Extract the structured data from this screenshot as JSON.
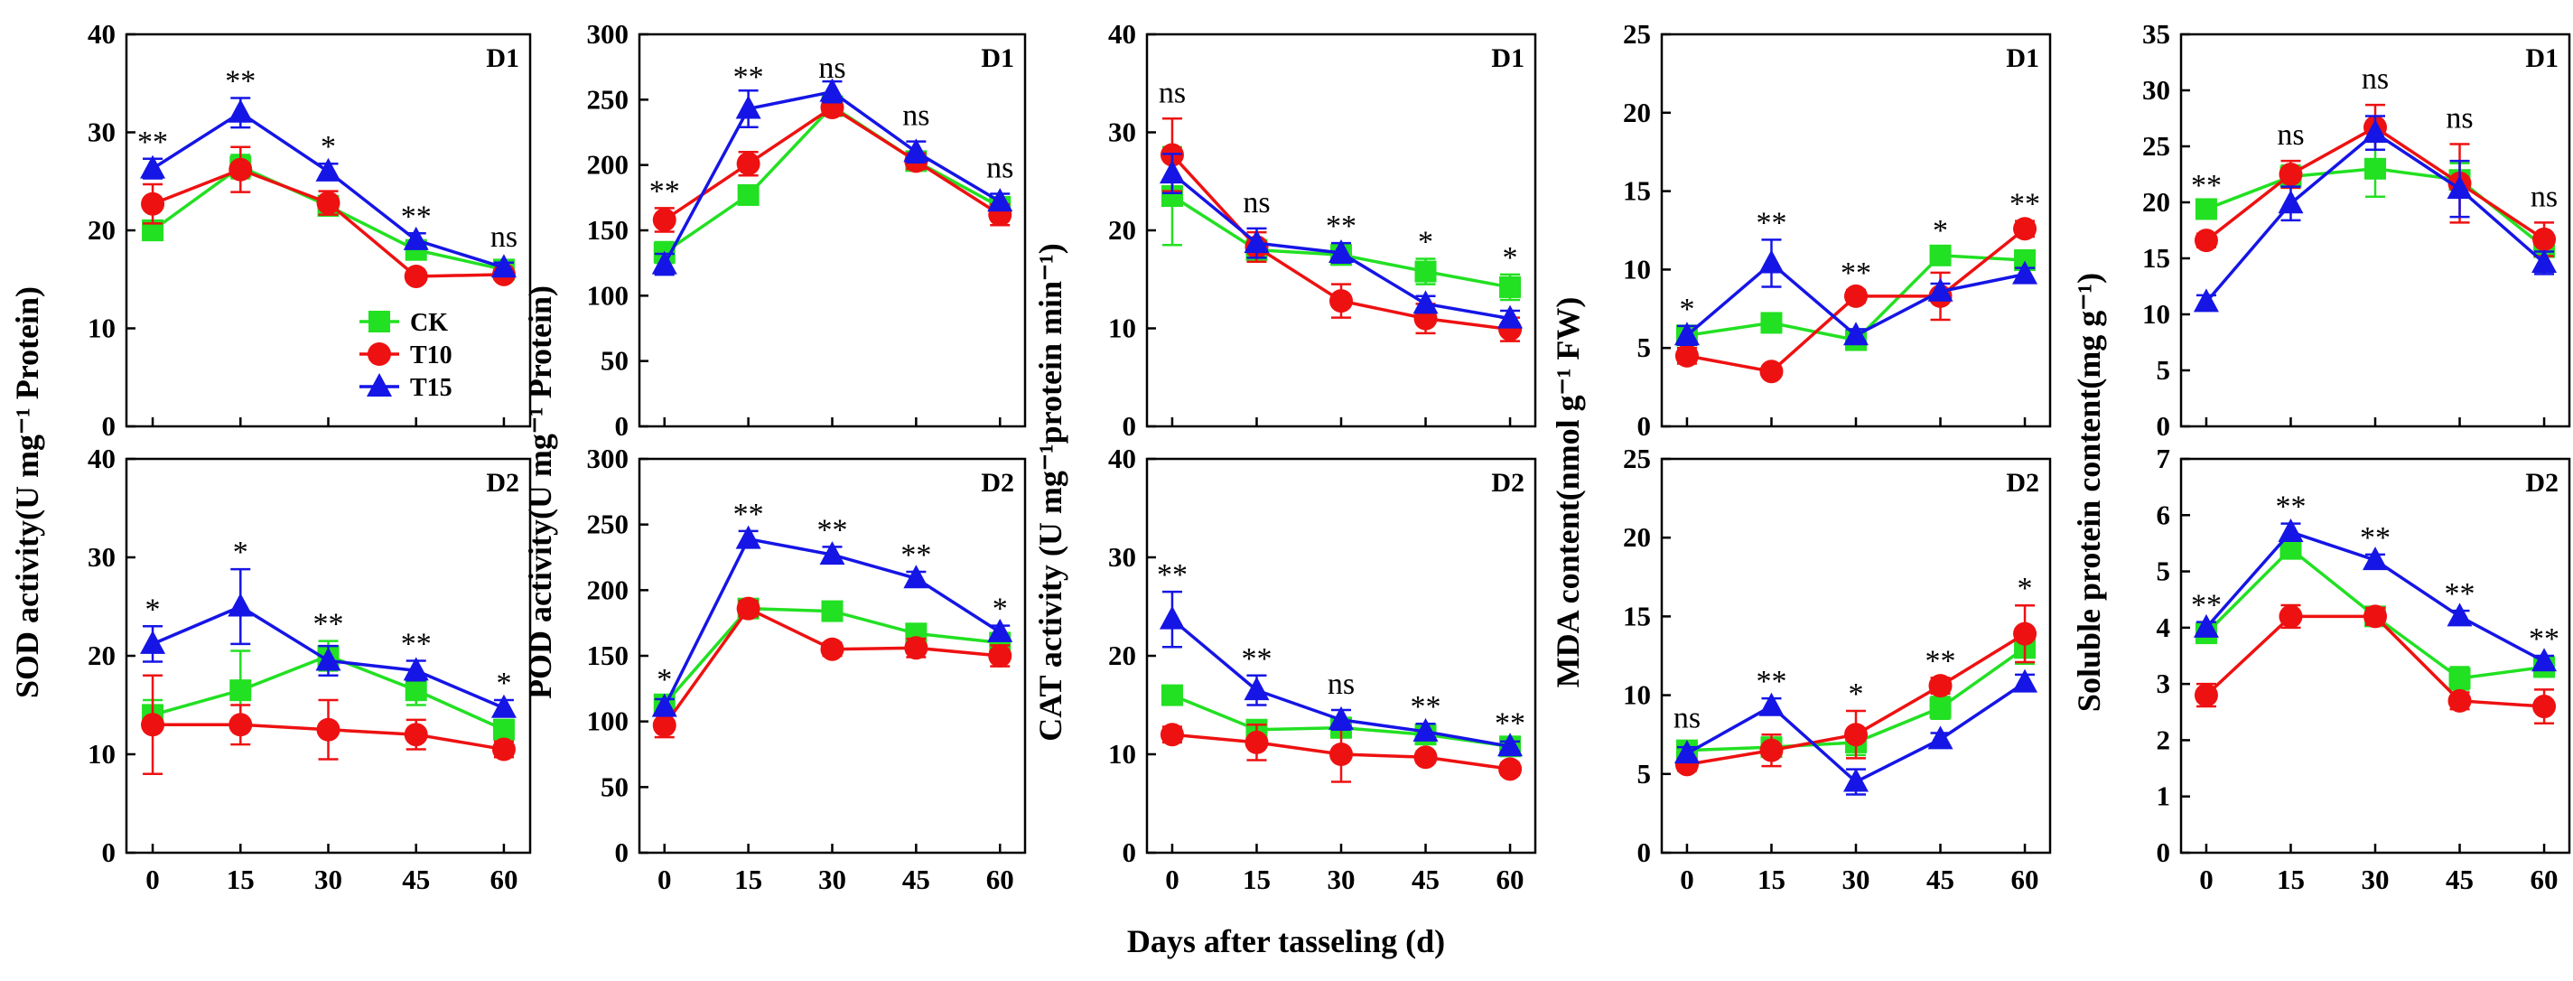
{
  "figure": {
    "xlabel": "Days after tasseling (d)",
    "legend": [
      "CK",
      "T10",
      "T15"
    ],
    "colors": {
      "CK": "#22e022",
      "T10": "#ee1111",
      "T15": "#1515e6"
    }
  },
  "chart_data": [
    {
      "type": "line",
      "id": "sod-d1",
      "panel_label": "D1",
      "ylabel": "SOD activity(U mg⁻¹ Protein)",
      "categories": [
        "0",
        "15",
        "30",
        "45",
        "60"
      ],
      "ylim": [
        0,
        40
      ],
      "yticks": [
        0,
        10,
        20,
        30,
        40
      ],
      "series": [
        {
          "name": "CK",
          "values": [
            20.0,
            26.5,
            22.5,
            18.0,
            16.0
          ],
          "errors": [
            1.0,
            1.2,
            1.0,
            0.8,
            0.6
          ]
        },
        {
          "name": "T10",
          "values": [
            22.7,
            26.2,
            22.8,
            15.3,
            15.5
          ],
          "errors": [
            2.0,
            2.3,
            1.2,
            0.5,
            0.5
          ]
        },
        {
          "name": "T15",
          "values": [
            26.3,
            32.0,
            26.0,
            19.0,
            16.2
          ],
          "errors": [
            1.0,
            1.5,
            0.8,
            0.7,
            0.5
          ]
        }
      ],
      "significance": [
        "**",
        "**",
        "*",
        "**",
        "ns"
      ],
      "legend_position": "bottom-right"
    },
    {
      "type": "line",
      "id": "sod-d2",
      "panel_label": "D2",
      "ylabel": "",
      "categories": [
        "0",
        "15",
        "30",
        "45",
        "60"
      ],
      "ylim": [
        0,
        40
      ],
      "yticks": [
        0,
        10,
        20,
        30,
        40
      ],
      "series": [
        {
          "name": "CK",
          "values": [
            14.0,
            16.5,
            20.0,
            16.5,
            12.5
          ],
          "errors": [
            1.5,
            4.0,
            1.5,
            1.5,
            1.0
          ]
        },
        {
          "name": "T10",
          "values": [
            13.0,
            13.0,
            12.5,
            12.0,
            10.5
          ],
          "errors": [
            5.0,
            2.0,
            3.0,
            1.5,
            0.8
          ]
        },
        {
          "name": "T15",
          "values": [
            21.2,
            25.0,
            19.5,
            18.5,
            14.7
          ],
          "errors": [
            1.8,
            3.8,
            1.5,
            1.0,
            0.8
          ]
        }
      ],
      "significance": [
        "*",
        "*",
        "**",
        "**",
        "*"
      ]
    },
    {
      "type": "line",
      "id": "pod-d1",
      "panel_label": "D1",
      "ylabel": "POD activity(U mg⁻¹ Protein)",
      "categories": [
        "0",
        "15",
        "30",
        "45",
        "60"
      ],
      "ylim": [
        0,
        300
      ],
      "yticks": [
        0,
        50,
        100,
        150,
        200,
        250,
        300
      ],
      "series": [
        {
          "name": "CK",
          "values": [
            133,
            177,
            245,
            203,
            168
          ],
          "errors": [
            8,
            6,
            6,
            6,
            6
          ]
        },
        {
          "name": "T10",
          "values": [
            158,
            201,
            244,
            203,
            162
          ],
          "errors": [
            9,
            9,
            6,
            6,
            8
          ]
        },
        {
          "name": "T15",
          "values": [
            124,
            243,
            256,
            210,
            172
          ],
          "errors": [
            8,
            14,
            8,
            8,
            6
          ]
        }
      ],
      "significance": [
        "**",
        "**",
        "ns",
        "ns",
        "ns"
      ]
    },
    {
      "type": "line",
      "id": "pod-d2",
      "panel_label": "D2",
      "ylabel": "",
      "categories": [
        "0",
        "15",
        "30",
        "45",
        "60"
      ],
      "ylim": [
        0,
        300
      ],
      "yticks": [
        0,
        50,
        100,
        150,
        200,
        250,
        300
      ],
      "series": [
        {
          "name": "CK",
          "values": [
            113,
            186,
            184,
            167,
            160
          ],
          "errors": [
            6,
            6,
            6,
            6,
            6
          ]
        },
        {
          "name": "T10",
          "values": [
            97,
            186,
            155,
            156,
            150
          ],
          "errors": [
            9,
            6,
            5,
            7,
            8
          ]
        },
        {
          "name": "T15",
          "values": [
            111,
            239,
            227,
            209,
            168
          ],
          "errors": [
            6,
            6,
            6,
            5,
            5
          ]
        }
      ],
      "significance": [
        "*",
        "**",
        "**",
        "**",
        "*"
      ]
    },
    {
      "type": "line",
      "id": "cat-d1",
      "panel_label": "D1",
      "ylabel": "CAT activity (U mg⁻¹protein min⁻¹)",
      "categories": [
        "0",
        "15",
        "30",
        "45",
        "60"
      ],
      "ylim": [
        0,
        40
      ],
      "yticks": [
        0,
        10,
        20,
        30,
        40
      ],
      "series": [
        {
          "name": "CK",
          "values": [
            23.5,
            18.0,
            17.5,
            15.8,
            14.2
          ],
          "errors": [
            5.0,
            1.0,
            1.0,
            1.3,
            1.3
          ]
        },
        {
          "name": "T10",
          "values": [
            27.7,
            18.3,
            12.8,
            11.0,
            9.9
          ],
          "errors": [
            3.7,
            1.5,
            1.7,
            1.5,
            1.2
          ]
        },
        {
          "name": "T15",
          "values": [
            25.8,
            18.7,
            17.7,
            12.5,
            11.0
          ],
          "errors": [
            2.0,
            1.5,
            1.0,
            0.8,
            0.8
          ]
        }
      ],
      "significance": [
        "ns",
        "ns",
        "**",
        "*",
        "*"
      ]
    },
    {
      "type": "line",
      "id": "cat-d2",
      "panel_label": "D2",
      "ylabel": "",
      "categories": [
        "0",
        "15",
        "30",
        "45",
        "60"
      ],
      "ylim": [
        0,
        40
      ],
      "yticks": [
        0,
        10,
        20,
        30,
        40
      ],
      "series": [
        {
          "name": "CK",
          "values": [
            16.0,
            12.5,
            12.7,
            12.0,
            10.8
          ],
          "errors": [
            0.8,
            0.8,
            1.0,
            0.8,
            0.6
          ]
        },
        {
          "name": "T10",
          "values": [
            12.0,
            11.2,
            10.0,
            9.7,
            8.5
          ],
          "errors": [
            0.8,
            1.8,
            2.8,
            0.6,
            0.6
          ]
        },
        {
          "name": "T15",
          "values": [
            23.7,
            16.5,
            13.5,
            12.3,
            10.8
          ],
          "errors": [
            2.8,
            1.5,
            1.0,
            0.8,
            0.5
          ]
        }
      ],
      "significance": [
        "**",
        "**",
        "ns",
        "**",
        "**"
      ]
    },
    {
      "type": "line",
      "id": "mda-d1",
      "panel_label": "D1",
      "ylabel": "MDA content(nmol g⁻¹ FW)",
      "categories": [
        "0",
        "15",
        "30",
        "45",
        "60"
      ],
      "ylim": [
        0,
        25
      ],
      "yticks": [
        0,
        5,
        10,
        15,
        20,
        25
      ],
      "series": [
        {
          "name": "CK",
          "values": [
            5.8,
            6.6,
            5.5,
            10.9,
            10.6
          ],
          "errors": [
            0.4,
            0.4,
            0.5,
            0.5,
            0.6
          ]
        },
        {
          "name": "T10",
          "values": [
            4.5,
            3.5,
            8.3,
            8.3,
            12.6
          ],
          "errors": [
            0.5,
            0.3,
            0.4,
            1.5,
            0.5
          ]
        },
        {
          "name": "T15",
          "values": [
            5.8,
            10.4,
            5.8,
            8.6,
            9.7
          ],
          "errors": [
            0.6,
            1.5,
            0.4,
            0.5,
            0.4
          ]
        }
      ],
      "significance": [
        "*",
        "**",
        "**",
        "*",
        "**"
      ]
    },
    {
      "type": "line",
      "id": "mda-d2",
      "panel_label": "D2",
      "ylabel": "",
      "categories": [
        "0",
        "15",
        "30",
        "45",
        "60"
      ],
      "ylim": [
        0,
        25
      ],
      "yticks": [
        0,
        5,
        10,
        15,
        20,
        25
      ],
      "series": [
        {
          "name": "CK",
          "values": [
            6.5,
            6.7,
            7.0,
            9.2,
            13.0
          ],
          "errors": [
            0.4,
            0.6,
            0.8,
            0.7,
            1.0
          ]
        },
        {
          "name": "T10",
          "values": [
            5.6,
            6.5,
            7.5,
            10.6,
            13.9
          ],
          "errors": [
            0.4,
            1.0,
            1.5,
            0.5,
            1.8
          ]
        },
        {
          "name": "T15",
          "values": [
            6.3,
            9.3,
            4.5,
            7.2,
            10.8
          ],
          "errors": [
            0.4,
            0.5,
            0.8,
            0.4,
            0.5
          ]
        }
      ],
      "significance": [
        "ns",
        "**",
        "*",
        "**",
        "*"
      ]
    },
    {
      "type": "line",
      "id": "protein-d1",
      "panel_label": "D1",
      "ylabel": "Soluble protein content(mg g⁻¹)",
      "categories": [
        "0",
        "15",
        "30",
        "45",
        "60"
      ],
      "ylim": [
        0,
        35
      ],
      "yticks": [
        0,
        5,
        10,
        15,
        20,
        25,
        30,
        35
      ],
      "series": [
        {
          "name": "CK",
          "values": [
            19.4,
            22.3,
            23.0,
            22.0,
            16.0
          ],
          "errors": [
            0.6,
            1.0,
            2.5,
            1.5,
            0.8
          ]
        },
        {
          "name": "T10",
          "values": [
            16.6,
            22.5,
            26.7,
            21.7,
            16.7
          ],
          "errors": [
            0.6,
            1.2,
            2.0,
            3.5,
            1.5
          ]
        },
        {
          "name": "T15",
          "values": [
            11.1,
            19.9,
            26.2,
            21.2,
            14.6
          ],
          "errors": [
            0.6,
            1.5,
            1.5,
            2.5,
            1.0
          ]
        }
      ],
      "significance": [
        "**",
        "ns",
        "ns",
        "ns",
        "ns"
      ]
    },
    {
      "type": "line",
      "id": "protein-d2",
      "panel_label": "D2",
      "ylabel": "",
      "categories": [
        "0",
        "15",
        "30",
        "45",
        "60"
      ],
      "ylim": [
        0,
        7
      ],
      "yticks": [
        0,
        1,
        2,
        3,
        4,
        5,
        6,
        7
      ],
      "series": [
        {
          "name": "CK",
          "values": [
            3.9,
            5.4,
            4.2,
            3.1,
            3.3
          ],
          "errors": [
            0.15,
            0.15,
            0.15,
            0.2,
            0.1
          ]
        },
        {
          "name": "T10",
          "values": [
            2.8,
            4.2,
            4.2,
            2.7,
            2.6
          ],
          "errors": [
            0.2,
            0.2,
            0.15,
            0.15,
            0.3
          ]
        },
        {
          "name": "T15",
          "values": [
            4.0,
            5.7,
            5.2,
            4.2,
            3.4
          ],
          "errors": [
            0.1,
            0.15,
            0.1,
            0.1,
            0.1
          ]
        }
      ],
      "significance": [
        "**",
        "**",
        "**",
        "**",
        "**"
      ]
    }
  ]
}
